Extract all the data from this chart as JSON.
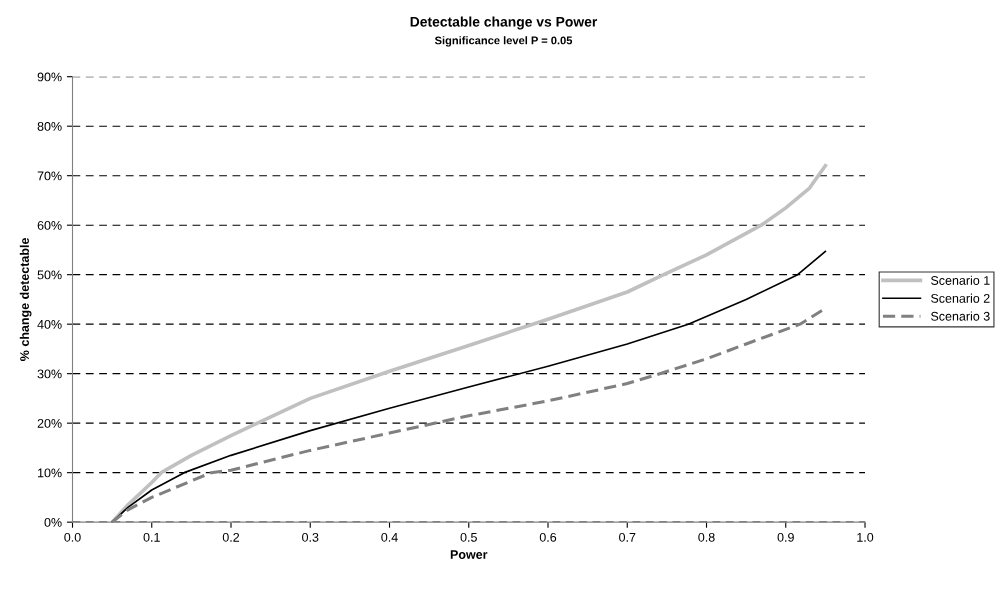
{
  "chart_data": {
    "type": "line",
    "title": "Detectable change vs Power",
    "subtitle": "Significance level P = 0.05",
    "xlabel": "Power",
    "ylabel": "% change detectable",
    "xlim": [
      0,
      1
    ],
    "xticks": [
      {
        "value": 0,
        "label": "0.0"
      },
      {
        "value": 0.1,
        "label": "0.1"
      },
      {
        "value": 0.2,
        "label": "0.2"
      },
      {
        "value": 0.3,
        "label": "0.3"
      },
      {
        "value": 0.4,
        "label": "0.4"
      },
      {
        "value": 0.5,
        "label": "0.5"
      },
      {
        "value": 0.6,
        "label": "0.6"
      },
      {
        "value": 0.7,
        "label": "0.7"
      },
      {
        "value": 0.8,
        "label": "0.8"
      },
      {
        "value": 0.9,
        "label": "0.9"
      },
      {
        "value": 1,
        "label": "1.0"
      }
    ],
    "ylim": [
      0,
      90
    ],
    "yticks": [
      {
        "value": 0,
        "label": "0%"
      },
      {
        "value": 10,
        "label": "10%"
      },
      {
        "value": 20,
        "label": "20%"
      },
      {
        "value": 30,
        "label": "30%"
      },
      {
        "value": 40,
        "label": "40%"
      },
      {
        "value": 50,
        "label": "50%"
      },
      {
        "value": 60,
        "label": "60%"
      },
      {
        "value": 70,
        "label": "70%"
      },
      {
        "value": 80,
        "label": "80%"
      },
      {
        "value": 90,
        "label": "90%"
      }
    ],
    "grid": "y",
    "legend": "right",
    "marker": "none",
    "series": [
      {
        "name": "Scenario 1",
        "color": "#c0c0c0",
        "line_style": "solid",
        "x": [
          0.05,
          0.07,
          0.1,
          0.112,
          0.15,
          0.2,
          0.3,
          0.4,
          0.5,
          0.6,
          0.7,
          0.746,
          0.8,
          0.869,
          0.9,
          0.93,
          0.95
        ],
        "values": [
          0,
          3.5,
          8,
          10,
          13.5,
          17.5,
          25,
          30.5,
          35.7,
          41,
          46.5,
          50,
          54,
          60,
          63.5,
          67.5,
          72
        ]
      },
      {
        "name": "Scenario 2",
        "color": "#000000",
        "line_style": "solid",
        "x": [
          0.05,
          0.07,
          0.1,
          0.141,
          0.2,
          0.3,
          0.4,
          0.5,
          0.6,
          0.7,
          0.777,
          0.85,
          0.915,
          0.95
        ],
        "values": [
          0,
          3,
          6.5,
          10,
          13.5,
          18.5,
          23,
          27.3,
          31.5,
          36,
          40,
          45,
          50,
          54.7
        ]
      },
      {
        "name": "Scenario 3",
        "color": "#808080",
        "line_style": "dashed",
        "x": [
          0.05,
          0.07,
          0.1,
          0.175,
          0.2,
          0.3,
          0.4,
          0.5,
          0.6,
          0.7,
          0.741,
          0.8,
          0.85,
          0.918,
          0.95
        ],
        "values": [
          0,
          2.5,
          5,
          10,
          10.5,
          14.5,
          18,
          21.5,
          24.5,
          28,
          30,
          33,
          36,
          40,
          43.2
        ]
      }
    ]
  }
}
